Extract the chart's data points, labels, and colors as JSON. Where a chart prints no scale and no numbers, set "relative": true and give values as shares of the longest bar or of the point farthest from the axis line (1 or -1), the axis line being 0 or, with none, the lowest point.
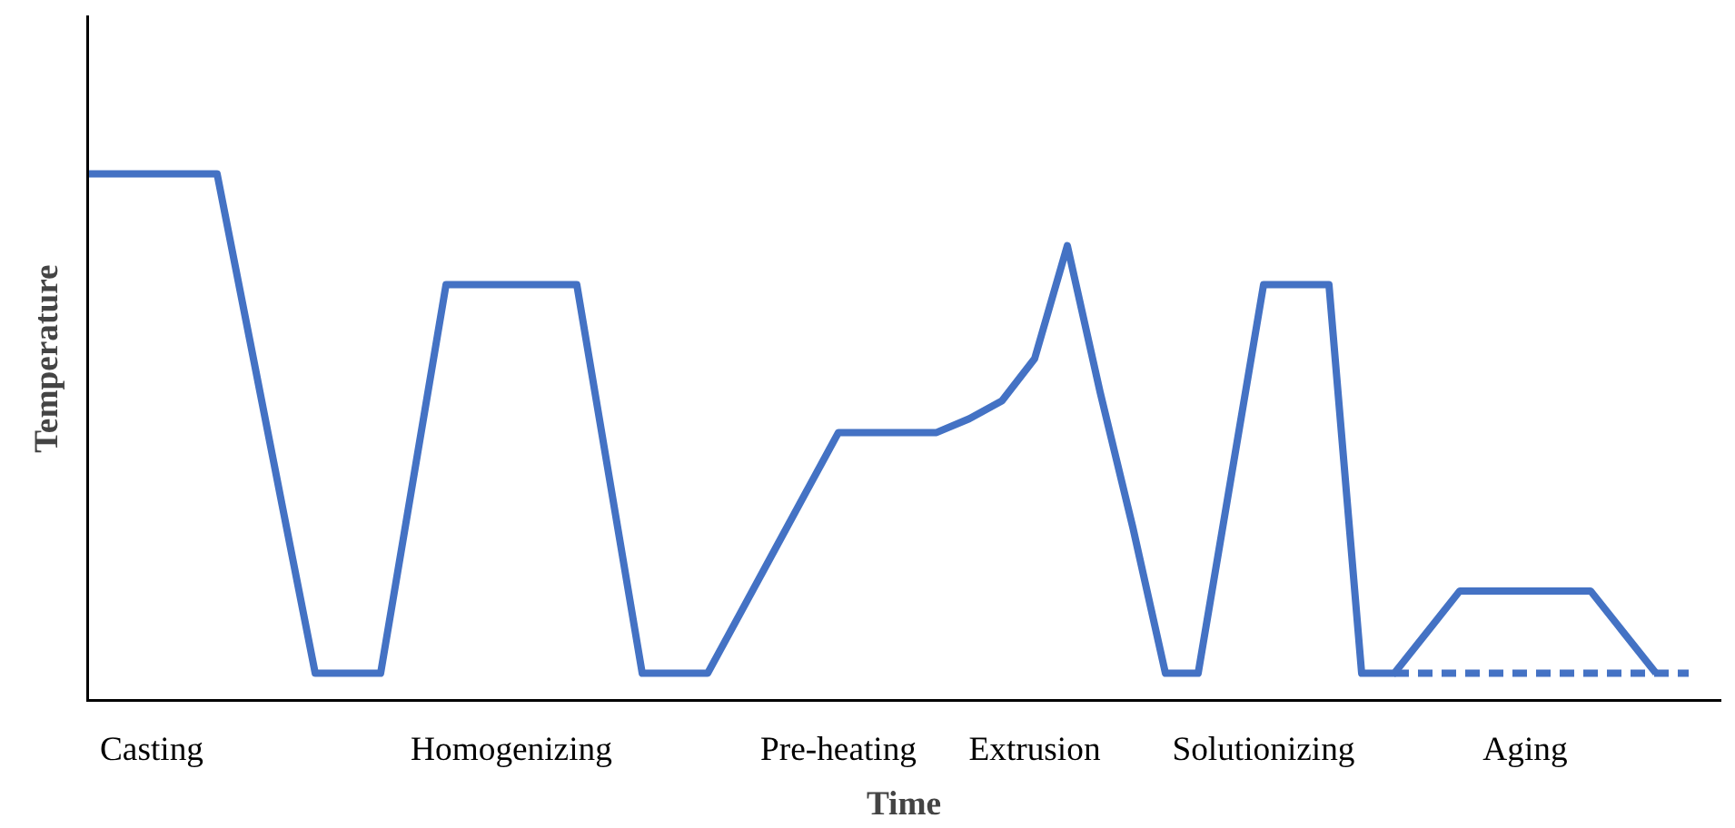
{
  "chart_data": {
    "type": "line",
    "relative": true,
    "xlabel": "Time",
    "ylabel": "Temperature",
    "categories": [
      null,
      null,
      "Casting",
      null,
      null,
      null,
      null,
      null,
      null,
      null,
      null,
      null,
      null,
      "Homogenizing",
      null,
      null,
      null,
      null,
      null,
      null,
      null,
      null,
      null,
      "Pre-heating",
      null,
      null,
      null,
      null,
      null,
      "Extrusion",
      null,
      null,
      null,
      null,
      null,
      null,
      "Solutionizing",
      null,
      null,
      null,
      null,
      null,
      null,
      null,
      "Aging",
      null,
      null,
      null,
      null,
      null,
      null
    ],
    "grid": false,
    "marker": "none",
    "series": [
      {
        "color": "#4472c4",
        "line_style": "solid",
        "values": [
          1.0,
          1.0,
          1.0,
          1.0,
          1.0,
          0.685,
          0.369,
          0.054,
          0.054,
          0.054,
          0.422,
          0.79,
          0.79,
          0.79,
          0.79,
          0.79,
          0.422,
          0.054,
          0.054,
          0.054,
          0.168,
          0.282,
          0.396,
          0.51,
          0.51,
          0.51,
          0.51,
          0.536,
          0.57,
          0.65,
          0.864,
          0.587,
          0.331,
          0.054,
          0.054,
          0.422,
          0.79,
          0.79,
          0.79,
          0.054,
          0.054,
          0.132,
          0.21,
          0.21,
          0.21,
          0.21,
          0.21,
          0.132,
          0.054,
          null,
          null
        ]
      },
      {
        "color": "#4472c4",
        "line_style": "dashed",
        "values": [
          null,
          null,
          null,
          null,
          null,
          null,
          null,
          null,
          null,
          null,
          null,
          null,
          null,
          null,
          null,
          null,
          null,
          null,
          null,
          null,
          null,
          null,
          null,
          null,
          null,
          null,
          null,
          null,
          null,
          null,
          null,
          null,
          null,
          null,
          null,
          null,
          null,
          null,
          null,
          null,
          0.054,
          0.054,
          0.054,
          0.054,
          0.054,
          0.054,
          0.054,
          0.054,
          0.054,
          0.054,
          null
        ]
      }
    ]
  }
}
